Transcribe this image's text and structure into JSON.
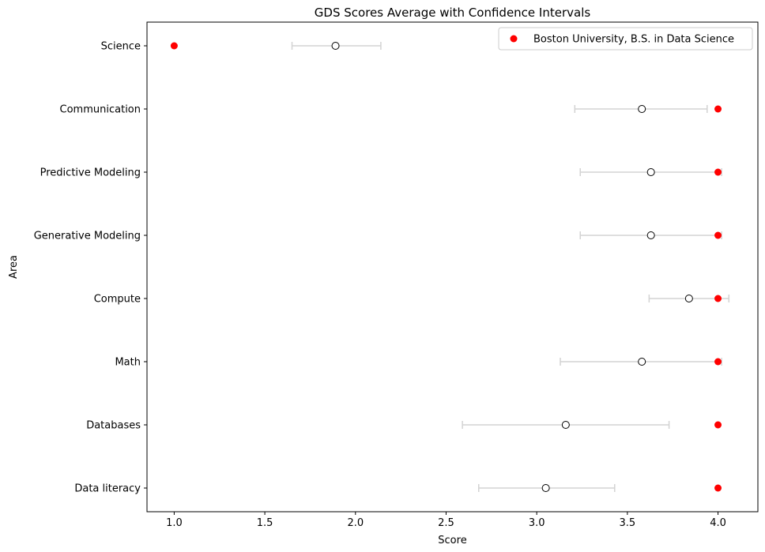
{
  "chart_data": {
    "type": "scatter",
    "title": "GDS Scores Average with Confidence Intervals",
    "xlabel": "Score",
    "ylabel": "Area",
    "xlim": [
      0.85,
      4.22
    ],
    "x_ticks": [
      "1.0",
      "1.5",
      "2.0",
      "2.5",
      "3.0",
      "3.5",
      "4.0"
    ],
    "categories": [
      "Science",
      "Communication",
      "Predictive Modeling",
      "Generative Modeling",
      "Compute",
      "Math",
      "Databases",
      "Data literacy"
    ],
    "series": [
      {
        "name": "",
        "kind": "average-with-ci",
        "marker": "open-circle",
        "values": [
          1.89,
          3.58,
          3.63,
          3.63,
          3.84,
          3.58,
          3.16,
          3.05
        ],
        "ci_low": [
          1.65,
          3.21,
          3.24,
          3.24,
          3.62,
          3.13,
          2.59,
          2.68
        ],
        "ci_high": [
          2.14,
          3.94,
          4.02,
          4.02,
          4.06,
          4.02,
          3.73,
          3.43
        ]
      },
      {
        "name": "Boston University, B.S. in Data Science",
        "kind": "points",
        "marker": "filled-circle",
        "values": [
          1.0,
          4.0,
          4.0,
          4.0,
          4.0,
          4.0,
          4.0,
          4.0
        ]
      }
    ],
    "legend_position": "top-right",
    "grid": false
  },
  "colors": {
    "school_marker": "#ff0000",
    "ci_line": "#d3d3d3",
    "avg_marker_edge": "#000000"
  }
}
